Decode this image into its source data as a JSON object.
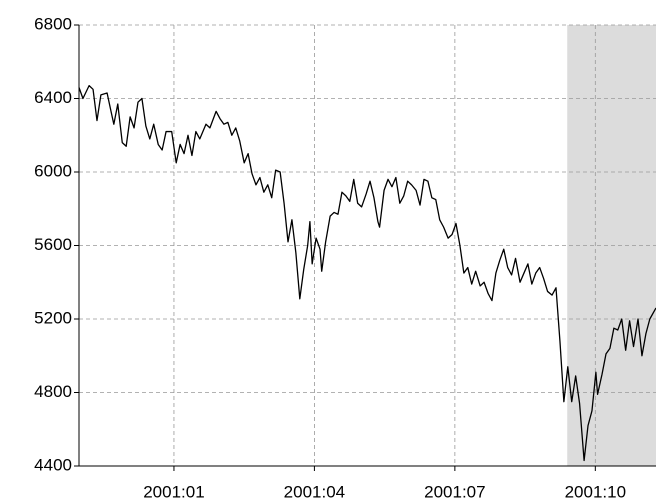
{
  "chart_data": {
    "type": "line",
    "x": [
      2000.831,
      2000.838,
      2000.849,
      2000.856,
      2000.863,
      2000.87,
      2000.881,
      2000.888,
      2000.893,
      2000.9,
      2000.908,
      2000.915,
      2000.922,
      2000.929,
      2000.936,
      2000.943,
      2000.95,
      2000.957,
      2000.964,
      2000.972,
      2000.979,
      2000.986,
      2000.996,
      2001.004,
      2001.011,
      2001.018,
      2001.025,
      2001.032,
      2001.039,
      2001.046,
      2001.057,
      2001.064,
      2001.075,
      2001.082,
      2001.089,
      2001.096,
      2001.103,
      2001.11,
      2001.117,
      2001.125,
      2001.132,
      2001.139,
      2001.146,
      2001.153,
      2001.16,
      2001.167,
      2001.174,
      2001.181,
      2001.189,
      2001.196,
      2001.203,
      2001.21,
      2001.217,
      2001.224,
      2001.231,
      2001.238,
      2001.242,
      2001.246,
      2001.253,
      2001.26,
      2001.263,
      2001.27,
      2001.278,
      2001.285,
      2001.292,
      2001.299,
      2001.306,
      2001.313,
      2001.32,
      2001.327,
      2001.334,
      2001.342,
      2001.349,
      2001.356,
      2001.363,
      2001.366,
      2001.374,
      2001.381,
      2001.388,
      2001.395,
      2001.402,
      2001.409,
      2001.416,
      2001.423,
      2001.431,
      2001.438,
      2001.445,
      2001.452,
      2001.459,
      2001.466,
      2001.473,
      2001.48,
      2001.488,
      2001.495,
      2001.502,
      2001.509,
      2001.516,
      2001.523,
      2001.53,
      2001.537,
      2001.545,
      2001.552,
      2001.559,
      2001.566,
      2001.573,
      2001.58,
      2001.587,
      2001.594,
      2001.601,
      2001.608,
      2001.616,
      2001.623,
      2001.63,
      2001.637,
      2001.644,
      2001.651,
      2001.658,
      2001.665,
      2001.673,
      2001.68,
      2001.687,
      2001.694,
      2001.701,
      2001.708,
      2001.715,
      2001.722,
      2001.73,
      2001.737,
      2001.744,
      2001.751,
      2001.754,
      2001.762,
      2001.769,
      2001.776,
      2001.783,
      2001.79,
      2001.797,
      2001.804,
      2001.811,
      2001.818,
      2001.826,
      2001.833,
      2001.84,
      2001.847,
      2001.858
    ],
    "values": [
      6460,
      6400,
      6470,
      6450,
      6280,
      6420,
      6430,
      6330,
      6260,
      6370,
      6160,
      6140,
      6300,
      6240,
      6380,
      6400,
      6250,
      6180,
      6260,
      6150,
      6120,
      6220,
      6220,
      6050,
      6150,
      6100,
      6200,
      6090,
      6220,
      6180,
      6260,
      6240,
      6330,
      6290,
      6260,
      6270,
      6200,
      6240,
      6170,
      6050,
      6100,
      5990,
      5930,
      5970,
      5890,
      5930,
      5860,
      6010,
      6000,
      5830,
      5620,
      5740,
      5560,
      5310,
      5470,
      5600,
      5730,
      5500,
      5640,
      5580,
      5460,
      5620,
      5760,
      5780,
      5770,
      5890,
      5870,
      5840,
      5960,
      5830,
      5810,
      5880,
      5950,
      5860,
      5730,
      5700,
      5900,
      5960,
      5920,
      5970,
      5830,
      5870,
      5950,
      5930,
      5900,
      5820,
      5960,
      5950,
      5860,
      5850,
      5740,
      5700,
      5640,
      5660,
      5720,
      5600,
      5450,
      5480,
      5390,
      5460,
      5380,
      5400,
      5340,
      5300,
      5450,
      5520,
      5580,
      5480,
      5440,
      5530,
      5400,
      5450,
      5500,
      5390,
      5450,
      5480,
      5420,
      5350,
      5330,
      5370,
      5080,
      4750,
      4940,
      4750,
      4890,
      4740,
      4430,
      4620,
      4700,
      4910,
      4790,
      4900,
      5010,
      5040,
      5150,
      5140,
      5200,
      5030,
      5190,
      5050,
      5200,
      5000,
      5120,
      5200,
      5260
    ],
    "color": "#000000",
    "xlim": [
      2000.831,
      2001.858
    ],
    "xticks": [
      {
        "value": 2001.0,
        "label": "2001:01"
      },
      {
        "value": 2001.25,
        "label": "2001:04"
      },
      {
        "value": 2001.5,
        "label": "2001:07"
      },
      {
        "value": 2001.75,
        "label": "2001:10"
      }
    ],
    "ylim": [
      4400,
      6800
    ],
    "yticks": [
      4400,
      4800,
      5200,
      5600,
      6000,
      6400,
      6800
    ],
    "shaded_regions": [
      [
        2001.7,
        2001.858
      ]
    ],
    "shade_color": "#dcdcdc",
    "grid": true
  }
}
